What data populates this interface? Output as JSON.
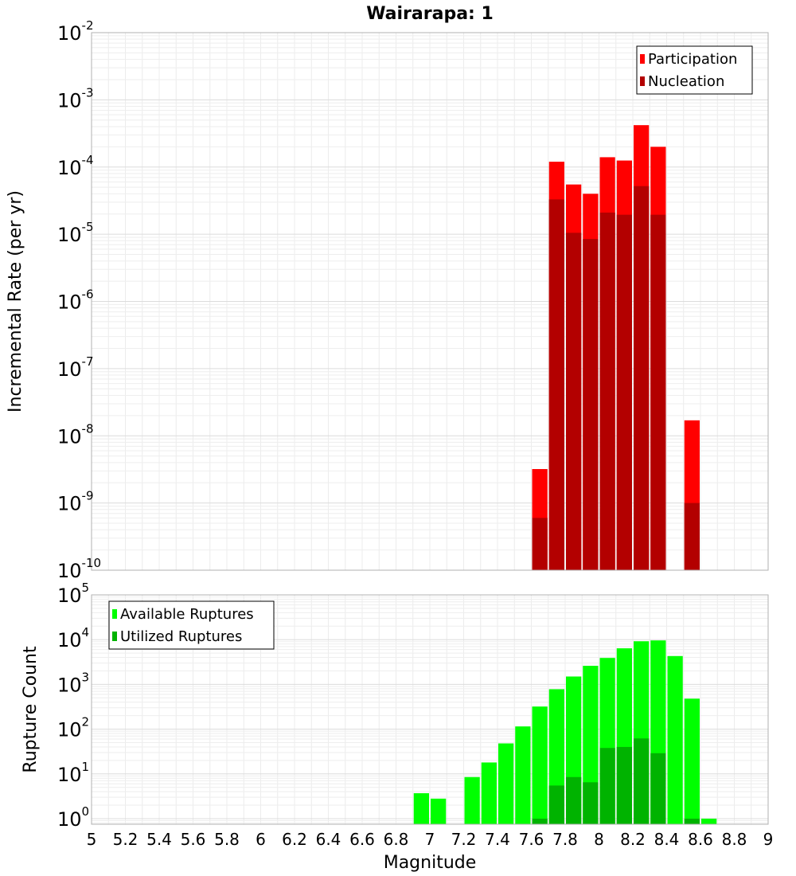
{
  "chart_data": [
    {
      "type": "bar",
      "title": "Wairarapa: 1",
      "ylabel": "Incremental Rate (per yr)",
      "xlabel": "",
      "yscale": "log",
      "ylim": [
        1e-10,
        0.01
      ],
      "xlim": [
        5,
        9
      ],
      "grid": true,
      "legend_position": "top-right",
      "bar_width": 0.1,
      "series": [
        {
          "name": "Participation",
          "color": "#ff0000",
          "x": [
            7.65,
            7.75,
            7.85,
            7.95,
            8.05,
            8.15,
            8.25,
            8.35,
            8.55
          ],
          "values": [
            3.2e-09,
            0.00012,
            5.5e-05,
            4e-05,
            0.00014,
            0.000125,
            0.00042,
            0.0002,
            1.7e-08
          ]
        },
        {
          "name": "Nucleation",
          "color": "#b30000",
          "x": [
            7.65,
            7.75,
            7.85,
            7.95,
            8.05,
            8.15,
            8.25,
            8.35,
            8.55
          ],
          "values": [
            6e-10,
            3.3e-05,
            1.05e-05,
            8.5e-06,
            2.1e-05,
            1.95e-05,
            5.2e-05,
            1.95e-05,
            1e-09
          ]
        }
      ]
    },
    {
      "type": "bar",
      "title": "",
      "ylabel": "Rupture Count",
      "xlabel": "Magnitude",
      "yscale": "log",
      "ylim": [
        0.75,
        100000.0
      ],
      "xlim": [
        5,
        9
      ],
      "x_ticks": [
        "5",
        "5.2",
        "5.4",
        "5.6",
        "5.8",
        "6",
        "6.2",
        "6.4",
        "6.6",
        "6.8",
        "7",
        "7.2",
        "7.4",
        "7.6",
        "7.8",
        "8",
        "8.2",
        "8.4",
        "8.6",
        "8.8",
        "9"
      ],
      "grid": true,
      "legend_position": "top-left",
      "bar_width": 0.1,
      "series": [
        {
          "name": "Available Ruptures",
          "color": "#00ff00",
          "x": [
            6.95,
            7.05,
            7.25,
            7.35,
            7.45,
            7.55,
            7.65,
            7.75,
            7.85,
            7.95,
            8.05,
            8.15,
            8.25,
            8.35,
            8.45,
            8.55,
            8.65
          ],
          "values": [
            3.7,
            2.8,
            8.5,
            18,
            48,
            115,
            320,
            780,
            1500,
            2600,
            3900,
            6400,
            9200,
            9600,
            4300,
            480,
            1
          ]
        },
        {
          "name": "Utilized Ruptures",
          "color": "#00b300",
          "x": [
            7.65,
            7.75,
            7.85,
            7.95,
            8.05,
            8.15,
            8.25,
            8.35,
            8.55
          ],
          "values": [
            1,
            5.5,
            8.5,
            6.5,
            38,
            40,
            62,
            29,
            1
          ]
        }
      ]
    }
  ]
}
